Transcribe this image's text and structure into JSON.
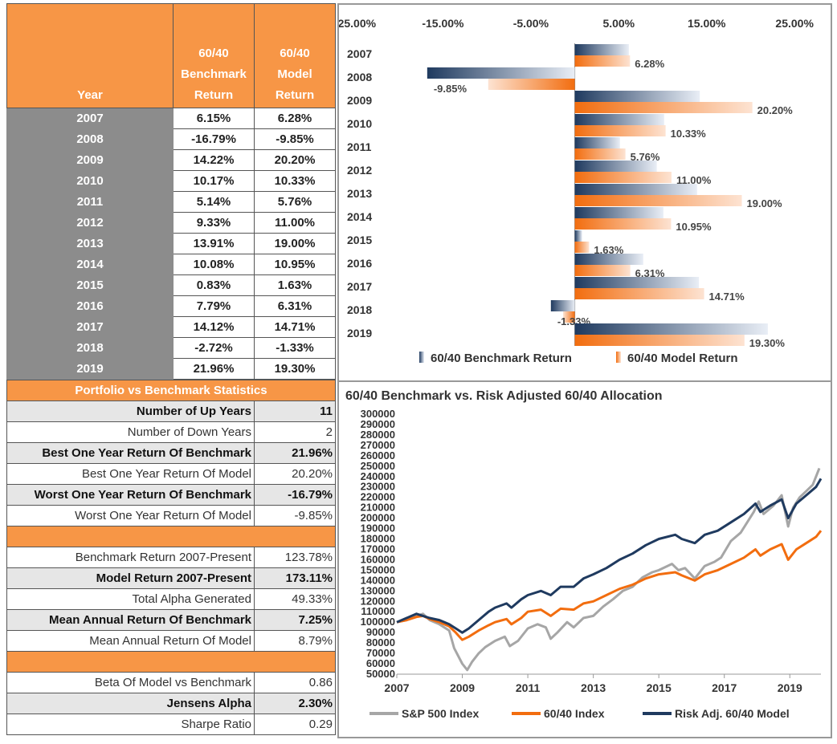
{
  "table": {
    "headers": {
      "year": "Year",
      "bench": [
        "60/40",
        "Benchmark",
        "Return"
      ],
      "model": [
        "60/40",
        "Model",
        "Return"
      ]
    },
    "rows": [
      {
        "year": "2007",
        "bench": "6.15%",
        "model": "6.28%"
      },
      {
        "year": "2008",
        "bench": "-16.79%",
        "model": "-9.85%"
      },
      {
        "year": "2009",
        "bench": "14.22%",
        "model": "20.20%"
      },
      {
        "year": "2010",
        "bench": "10.17%",
        "model": "10.33%"
      },
      {
        "year": "2011",
        "bench": "5.14%",
        "model": "5.76%"
      },
      {
        "year": "2012",
        "bench": "9.33%",
        "model": "11.00%"
      },
      {
        "year": "2013",
        "bench": "13.91%",
        "model": "19.00%"
      },
      {
        "year": "2014",
        "bench": "10.08%",
        "model": "10.95%"
      },
      {
        "year": "2015",
        "bench": "0.83%",
        "model": "1.63%"
      },
      {
        "year": "2016",
        "bench": "7.79%",
        "model": "6.31%"
      },
      {
        "year": "2017",
        "bench": "14.12%",
        "model": "14.71%"
      },
      {
        "year": "2018",
        "bench": "-2.72%",
        "model": "-1.33%"
      },
      {
        "year": "2019",
        "bench": "21.96%",
        "model": "19.30%"
      }
    ]
  },
  "stats": {
    "title": "Portfolio vs Benchmark Statistics",
    "group1": [
      {
        "label": "Number of Up Years",
        "value": "11"
      },
      {
        "label": "Number of Down Years",
        "value": "2"
      },
      {
        "label": "Best One Year Return Of Benchmark",
        "value": "21.96%"
      },
      {
        "label": "Best One Year Return Of Model",
        "value": "20.20%"
      },
      {
        "label": "Worst One Year Return Of Benchmark",
        "value": "-16.79%"
      },
      {
        "label": "Worst One Year Return Of Model",
        "value": "-9.85%"
      }
    ],
    "group2": [
      {
        "label": "Benchmark Return 2007-Present",
        "value": "123.78%"
      },
      {
        "label": "Model Return 2007-Present",
        "value": "173.11%"
      },
      {
        "label": "Total Alpha Generated",
        "value": "49.33%"
      },
      {
        "label": "Mean Annual Return Of Benchmark",
        "value": "7.25%"
      },
      {
        "label": "Mean Annual Return Of Model",
        "value": "8.79%"
      }
    ],
    "group3": [
      {
        "label": "Beta Of Model vs Benchmark",
        "value": "0.86"
      },
      {
        "label": "Jensens Alpha",
        "value": "2.30%"
      },
      {
        "label": "Sharpe Ratio",
        "value": "0.29"
      }
    ]
  },
  "colors": {
    "orange": "#f79646",
    "navy": "#1f3a5f",
    "gray": "#a6a6a6",
    "line_orange": "#f26d0f",
    "red": "#e00000"
  },
  "chart_data": [
    {
      "type": "bar",
      "orientation": "horizontal",
      "categories": [
        "2007",
        "2008",
        "2009",
        "2010",
        "2011",
        "2012",
        "2013",
        "2014",
        "2015",
        "2016",
        "2017",
        "2018",
        "2019"
      ],
      "series": [
        {
          "name": "60/40 Benchmark Return",
          "values": [
            6.15,
            -16.79,
            14.22,
            10.17,
            5.14,
            9.33,
            13.91,
            10.08,
            0.83,
            7.79,
            14.12,
            -2.72,
            21.96
          ]
        },
        {
          "name": "60/40 Model Return",
          "values": [
            6.28,
            -9.85,
            20.2,
            10.33,
            5.76,
            11.0,
            19.0,
            10.95,
            1.63,
            6.31,
            14.71,
            -1.33,
            19.3
          ]
        }
      ],
      "data_labels": [
        "6.28%",
        "-9.85%",
        "20.20%",
        "10.33%",
        "5.76%",
        "11.00%",
        "19.00%",
        "10.95%",
        "1.63%",
        "6.31%",
        "14.71%",
        "-1.33%",
        "19.30%"
      ],
      "xticks": [
        "-25.00%",
        "-15.00%",
        "-5.00%",
        "5.00%",
        "15.00%",
        "25.00%"
      ],
      "xlim": [
        -25,
        28
      ],
      "legend": "bottom"
    },
    {
      "type": "line",
      "title": "60/40 Benchmark vs. Risk Adjusted 60/40 Allocation",
      "xticks": [
        "2007",
        "2009",
        "2011",
        "2013",
        "2015",
        "2017",
        "2019"
      ],
      "yticks": [
        "300000",
        "290000",
        "280000",
        "270000",
        "260000",
        "250000",
        "240000",
        "230000",
        "220000",
        "210000",
        "200000",
        "190000",
        "180000",
        "170000",
        "160000",
        "150000",
        "140000",
        "130000",
        "120000",
        "110000",
        "100000",
        "90000",
        "80000",
        "70000",
        "60000",
        "50000"
      ],
      "ylim": [
        50000,
        300000
      ],
      "xlim": [
        2007,
        2019.95
      ],
      "legend": "bottom",
      "series": [
        {
          "name": "S&P 500 Index",
          "color": "#a6a6a6",
          "points": [
            [
              2007,
              100000
            ],
            [
              2007.3,
              102000
            ],
            [
              2007.6,
              106000
            ],
            [
              2007.8,
              108000
            ],
            [
              2008,
              102000
            ],
            [
              2008.3,
              98000
            ],
            [
              2008.6,
              92000
            ],
            [
              2008.75,
              75000
            ],
            [
              2009,
              60000
            ],
            [
              2009.15,
              54000
            ],
            [
              2009.3,
              62000
            ],
            [
              2009.5,
              70000
            ],
            [
              2009.7,
              76000
            ],
            [
              2010,
              82000
            ],
            [
              2010.3,
              86000
            ],
            [
              2010.45,
              77000
            ],
            [
              2010.7,
              82000
            ],
            [
              2011,
              94000
            ],
            [
              2011.3,
              98000
            ],
            [
              2011.55,
              95000
            ],
            [
              2011.7,
              84000
            ],
            [
              2011.9,
              90000
            ],
            [
              2012.2,
              100000
            ],
            [
              2012.4,
              95000
            ],
            [
              2012.7,
              104000
            ],
            [
              2013,
              106000
            ],
            [
              2013.3,
              115000
            ],
            [
              2013.6,
              122000
            ],
            [
              2013.9,
              130000
            ],
            [
              2014.2,
              134000
            ],
            [
              2014.5,
              143000
            ],
            [
              2014.8,
              148000
            ],
            [
              2015,
              150000
            ],
            [
              2015.4,
              156000
            ],
            [
              2015.6,
              150000
            ],
            [
              2015.8,
              152000
            ],
            [
              2016.1,
              142000
            ],
            [
              2016.4,
              154000
            ],
            [
              2016.7,
              158000
            ],
            [
              2016.9,
              162000
            ],
            [
              2017.2,
              178000
            ],
            [
              2017.5,
              186000
            ],
            [
              2017.9,
              206000
            ],
            [
              2018.05,
              216000
            ],
            [
              2018.2,
              204000
            ],
            [
              2018.5,
              212000
            ],
            [
              2018.75,
              222000
            ],
            [
              2018.95,
              192000
            ],
            [
              2019.1,
              210000
            ],
            [
              2019.3,
              220000
            ],
            [
              2019.5,
              226000
            ],
            [
              2019.7,
              232000
            ],
            [
              2019.9,
              248000
            ]
          ]
        },
        {
          "name": "60/40 Index",
          "color": "#f26d0f",
          "points": [
            [
              2007,
              100000
            ],
            [
              2007.3,
              102000
            ],
            [
              2007.6,
              105000
            ],
            [
              2007.8,
              106000
            ],
            [
              2008,
              103000
            ],
            [
              2008.3,
              100000
            ],
            [
              2008.6,
              96000
            ],
            [
              2008.8,
              90000
            ],
            [
              2009,
              83000
            ],
            [
              2009.2,
              86000
            ],
            [
              2009.5,
              92000
            ],
            [
              2009.8,
              97000
            ],
            [
              2010,
              100000
            ],
            [
              2010.35,
              103000
            ],
            [
              2010.5,
              98000
            ],
            [
              2010.8,
              104000
            ],
            [
              2011,
              110000
            ],
            [
              2011.4,
              112000
            ],
            [
              2011.7,
              106000
            ],
            [
              2012,
              113000
            ],
            [
              2012.4,
              112000
            ],
            [
              2012.7,
              118000
            ],
            [
              2013,
              120000
            ],
            [
              2013.4,
              126000
            ],
            [
              2013.8,
              132000
            ],
            [
              2014.2,
              136000
            ],
            [
              2014.6,
              142000
            ],
            [
              2015,
              146000
            ],
            [
              2015.5,
              148000
            ],
            [
              2015.7,
              145000
            ],
            [
              2016.1,
              140000
            ],
            [
              2016.4,
              146000
            ],
            [
              2016.8,
              150000
            ],
            [
              2017.2,
              156000
            ],
            [
              2017.6,
              162000
            ],
            [
              2017.95,
              170000
            ],
            [
              2018.1,
              164000
            ],
            [
              2018.4,
              170000
            ],
            [
              2018.75,
              175000
            ],
            [
              2018.95,
              160000
            ],
            [
              2019.2,
              170000
            ],
            [
              2019.5,
              176000
            ],
            [
              2019.8,
              182000
            ],
            [
              2019.95,
              188000
            ]
          ]
        },
        {
          "name": "Risk Adj. 60/40 Model",
          "color": "#1f3a5f",
          "points": [
            [
              2007,
              100000
            ],
            [
              2007.3,
              104000
            ],
            [
              2007.6,
              108000
            ],
            [
              2007.8,
              106000
            ],
            [
              2008,
              104000
            ],
            [
              2008.3,
              102000
            ],
            [
              2008.6,
              98000
            ],
            [
              2008.8,
              94000
            ],
            [
              2009,
              90000
            ],
            [
              2009.2,
              94000
            ],
            [
              2009.5,
              102000
            ],
            [
              2009.8,
              110000
            ],
            [
              2010,
              114000
            ],
            [
              2010.35,
              118000
            ],
            [
              2010.5,
              114000
            ],
            [
              2010.8,
              122000
            ],
            [
              2011,
              126000
            ],
            [
              2011.4,
              130000
            ],
            [
              2011.7,
              126000
            ],
            [
              2012,
              134000
            ],
            [
              2012.4,
              134000
            ],
            [
              2012.7,
              142000
            ],
            [
              2013,
              146000
            ],
            [
              2013.4,
              152000
            ],
            [
              2013.8,
              160000
            ],
            [
              2014.2,
              166000
            ],
            [
              2014.6,
              174000
            ],
            [
              2015,
              180000
            ],
            [
              2015.5,
              184000
            ],
            [
              2015.7,
              180000
            ],
            [
              2016.1,
              176000
            ],
            [
              2016.4,
              184000
            ],
            [
              2016.8,
              188000
            ],
            [
              2017.2,
              196000
            ],
            [
              2017.6,
              204000
            ],
            [
              2017.95,
              214000
            ],
            [
              2018.1,
              206000
            ],
            [
              2018.4,
              212000
            ],
            [
              2018.75,
              218000
            ],
            [
              2018.95,
              200000
            ],
            [
              2019.2,
              214000
            ],
            [
              2019.5,
              222000
            ],
            [
              2019.8,
              230000
            ],
            [
              2019.95,
              238000
            ]
          ]
        }
      ]
    }
  ]
}
